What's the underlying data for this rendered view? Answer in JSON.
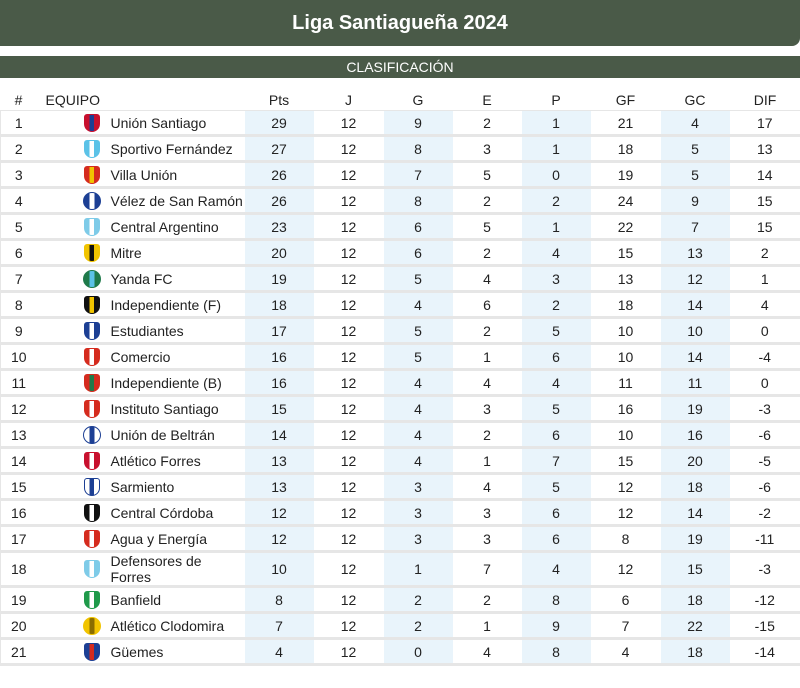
{
  "header": {
    "title": "Liga Santiagueña 2024",
    "subtitle": "CLASIFICACIÓN"
  },
  "columns": [
    "#",
    "EQUIPO",
    "Pts",
    "J",
    "G",
    "E",
    "P",
    "GF",
    "GC",
    "DIF"
  ],
  "colors": {
    "header_bg": "#4a5a48",
    "highlight_col": "#e9f4fb"
  },
  "rows": [
    {
      "pos": "1",
      "team": "Unión Santiago",
      "pts": "29",
      "j": "12",
      "g": "9",
      "e": "2",
      "p": "1",
      "gf": "21",
      "gc": "4",
      "dif": "17",
      "logo": "shield",
      "c1": "#c8102e",
      "c2": "#1c3f94"
    },
    {
      "pos": "2",
      "team": "Sportivo Fernández",
      "pts": "27",
      "j": "12",
      "g": "8",
      "e": "3",
      "p": "1",
      "gf": "18",
      "gc": "5",
      "dif": "13",
      "logo": "shield",
      "c1": "#5bc2e7",
      "c2": "#ffffff"
    },
    {
      "pos": "3",
      "team": "Villa Unión",
      "pts": "26",
      "j": "12",
      "g": "7",
      "e": "5",
      "p": "0",
      "gf": "19",
      "gc": "5",
      "dif": "14",
      "logo": "shield",
      "c1": "#d52b1e",
      "c2": "#f1c400"
    },
    {
      "pos": "4",
      "team": "Vélez de San Ramón",
      "pts": "26",
      "j": "12",
      "g": "8",
      "e": "2",
      "p": "2",
      "gf": "24",
      "gc": "9",
      "dif": "15",
      "logo": "round",
      "c1": "#1c3f94",
      "c2": "#ffffff"
    },
    {
      "pos": "5",
      "team": "Central Argentino",
      "pts": "23",
      "j": "12",
      "g": "6",
      "e": "5",
      "p": "1",
      "gf": "22",
      "gc": "7",
      "dif": "15",
      "logo": "shield",
      "c1": "#7ecbe8",
      "c2": "#ffffff"
    },
    {
      "pos": "6",
      "team": "Mitre",
      "pts": "20",
      "j": "12",
      "g": "6",
      "e": "2",
      "p": "4",
      "gf": "15",
      "gc": "13",
      "dif": "2",
      "logo": "shield",
      "c1": "#f1c400",
      "c2": "#111111"
    },
    {
      "pos": "7",
      "team": "Yanda FC",
      "pts": "19",
      "j": "12",
      "g": "5",
      "e": "4",
      "p": "3",
      "gf": "13",
      "gc": "12",
      "dif": "1",
      "logo": "round",
      "c1": "#1f7a4a",
      "c2": "#5bc2e7"
    },
    {
      "pos": "8",
      "team": "Independiente (F)",
      "pts": "18",
      "j": "12",
      "g": "4",
      "e": "6",
      "p": "2",
      "gf": "18",
      "gc": "14",
      "dif": "4",
      "logo": "shield",
      "c1": "#111111",
      "c2": "#f1c400"
    },
    {
      "pos": "9",
      "team": "Estudiantes",
      "pts": "17",
      "j": "12",
      "g": "5",
      "e": "2",
      "p": "5",
      "gf": "10",
      "gc": "10",
      "dif": "0",
      "logo": "shield",
      "c1": "#1c3f94",
      "c2": "#ffffff"
    },
    {
      "pos": "10",
      "team": "Comercio",
      "pts": "16",
      "j": "12",
      "g": "5",
      "e": "1",
      "p": "6",
      "gf": "10",
      "gc": "14",
      "dif": "-4",
      "logo": "shield",
      "c1": "#d52b1e",
      "c2": "#ffffff"
    },
    {
      "pos": "11",
      "team": "Independiente (B)",
      "pts": "16",
      "j": "12",
      "g": "4",
      "e": "4",
      "p": "4",
      "gf": "11",
      "gc": "11",
      "dif": "0",
      "logo": "shield",
      "c1": "#d52b1e",
      "c2": "#1f7a4a"
    },
    {
      "pos": "12",
      "team": "Instituto Santiago",
      "pts": "15",
      "j": "12",
      "g": "4",
      "e": "3",
      "p": "5",
      "gf": "16",
      "gc": "19",
      "dif": "-3",
      "logo": "shield",
      "c1": "#d52b1e",
      "c2": "#ffffff"
    },
    {
      "pos": "13",
      "team": "Unión de Beltrán",
      "pts": "14",
      "j": "12",
      "g": "4",
      "e": "2",
      "p": "6",
      "gf": "10",
      "gc": "16",
      "dif": "-6",
      "logo": "round",
      "c1": "#ffffff",
      "c2": "#1c3f94"
    },
    {
      "pos": "14",
      "team": "Atlético Forres",
      "pts": "13",
      "j": "12",
      "g": "4",
      "e": "1",
      "p": "7",
      "gf": "15",
      "gc": "20",
      "dif": "-5",
      "logo": "shield",
      "c1": "#c8102e",
      "c2": "#ffffff"
    },
    {
      "pos": "15",
      "team": "Sarmiento",
      "pts": "13",
      "j": "12",
      "g": "3",
      "e": "4",
      "p": "5",
      "gf": "12",
      "gc": "18",
      "dif": "-6",
      "logo": "shield",
      "c1": "#ffffff",
      "c2": "#1c3f94"
    },
    {
      "pos": "16",
      "team": "Central Córdoba",
      "pts": "12",
      "j": "12",
      "g": "3",
      "e": "3",
      "p": "6",
      "gf": "12",
      "gc": "14",
      "dif": "-2",
      "logo": "shield",
      "c1": "#111111",
      "c2": "#ffffff"
    },
    {
      "pos": "17",
      "team": "Agua y Energía",
      "pts": "12",
      "j": "12",
      "g": "3",
      "e": "3",
      "p": "6",
      "gf": "8",
      "gc": "19",
      "dif": "-11",
      "logo": "shield",
      "c1": "#d52b1e",
      "c2": "#ffffff"
    },
    {
      "pos": "18",
      "team": "Defensores de Forres",
      "pts": "10",
      "j": "12",
      "g": "1",
      "e": "7",
      "p": "4",
      "gf": "12",
      "gc": "15",
      "dif": "-3",
      "logo": "shield",
      "c1": "#7ecbe8",
      "c2": "#ffffff"
    },
    {
      "pos": "19",
      "team": "Banfield",
      "pts": "8",
      "j": "12",
      "g": "2",
      "e": "2",
      "p": "8",
      "gf": "6",
      "gc": "18",
      "dif": "-12",
      "logo": "shield",
      "c1": "#1f9a4a",
      "c2": "#ffffff"
    },
    {
      "pos": "20",
      "team": "Atlético Clodomira",
      "pts": "7",
      "j": "12",
      "g": "2",
      "e": "1",
      "p": "9",
      "gf": "7",
      "gc": "22",
      "dif": "-15",
      "logo": "round",
      "c1": "#f1c400",
      "c2": "#8a6d00"
    },
    {
      "pos": "21",
      "team": "Güemes",
      "pts": "4",
      "j": "12",
      "g": "0",
      "e": "4",
      "p": "8",
      "gf": "4",
      "gc": "18",
      "dif": "-14",
      "logo": "shield",
      "c1": "#1c3f94",
      "c2": "#d52b1e"
    }
  ]
}
